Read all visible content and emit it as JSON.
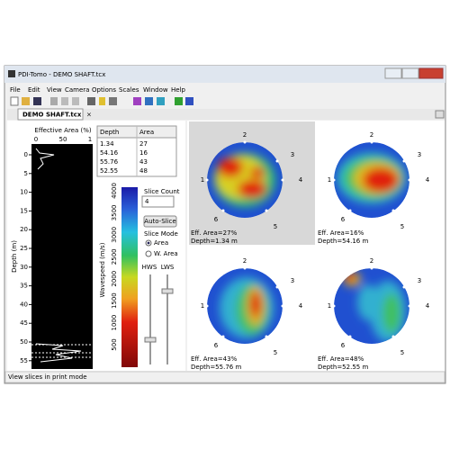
{
  "window": {
    "title": "PDI-Tomo - DEMO SHAFT.tcx"
  },
  "menu": [
    "File",
    "Edit",
    "View",
    "Camera",
    "Options",
    "Scales",
    "Window",
    "Help"
  ],
  "tab": "DEMO SHAFT.tcx",
  "profile": {
    "title": "Effective Area (%)",
    "x_ticks": [
      "0",
      "50",
      "1"
    ],
    "y_label": "Depth (m)",
    "y_ticks": [
      "0",
      "5",
      "10",
      "15",
      "20",
      "25",
      "30",
      "35",
      "40",
      "45",
      "50",
      "55"
    ]
  },
  "table": {
    "header": [
      "Depth",
      "Area"
    ],
    "rows": [
      [
        "1.34",
        "27"
      ],
      [
        "54.16",
        "16"
      ],
      [
        "55.76",
        "43"
      ],
      [
        "52.55",
        "48"
      ]
    ]
  },
  "colorbar": {
    "label": "Wavespeed (m/s)",
    "ticks": [
      "4000",
      "3500",
      "3000",
      "2500",
      "2000",
      "1500",
      "1000",
      "500"
    ]
  },
  "controls": {
    "slice_count_label": "Slice Count",
    "slice_count": "4",
    "auto_slice": "Auto-Slice",
    "slice_mode_label": "Slice Mode",
    "modes": [
      "Area",
      "W. Area"
    ],
    "hws": "HWS",
    "lws": "LWS"
  },
  "sensor_labels": [
    "1",
    "2",
    "3",
    "4",
    "5",
    "6"
  ],
  "slices": [
    {
      "eff_area": "Eff. Area=27%",
      "depth": "Depth=1.34 m"
    },
    {
      "eff_area": "Eff. Area=16%",
      "depth": "Depth=54.16 m"
    },
    {
      "eff_area": "Eff. Area=43%",
      "depth": "Depth=55.76 m"
    },
    {
      "eff_area": "Eff. Area=48%",
      "depth": "Depth=52.55 m"
    }
  ],
  "status": "View slices in print mode"
}
